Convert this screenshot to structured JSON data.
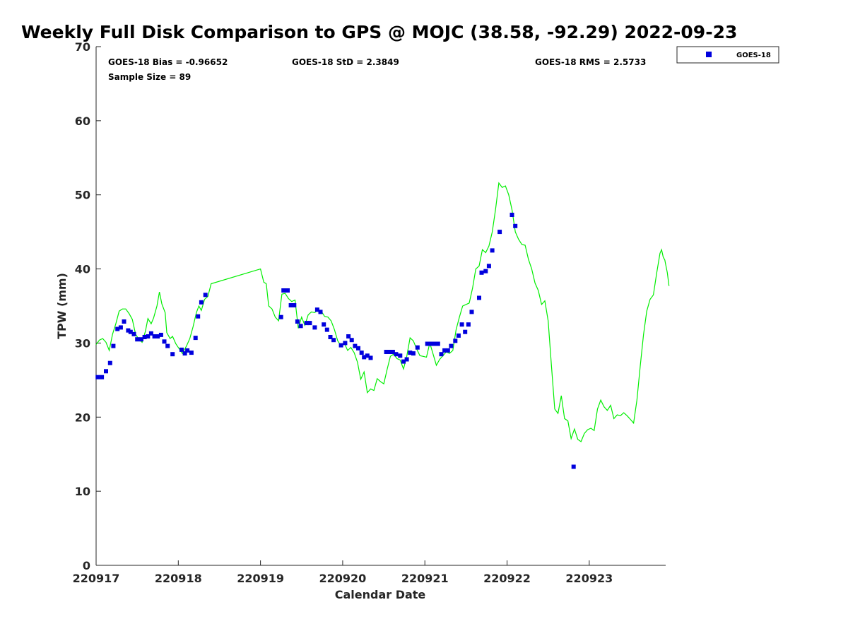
{
  "chart_data": {
    "type": "scatter",
    "title": "Weekly Full Disk Comparison to GPS @ MOJC (38.58, -92.29) 2022-09-23",
    "xlabel": "Calendar Date",
    "ylabel": "TPW (mm)",
    "xlim": [
      0,
      6.93
    ],
    "ylim": [
      0,
      70
    ],
    "x_tick_labels": [
      "220917",
      "220918",
      "220919",
      "220920",
      "220921",
      "220922",
      "220923"
    ],
    "x_tick_values": [
      0,
      1,
      2,
      3,
      4,
      5,
      6
    ],
    "y_tick_values": [
      0,
      10,
      20,
      30,
      40,
      50,
      60,
      70
    ],
    "grid": false,
    "legend_placement": "outside-top-right",
    "stats": {
      "bias": "GOES-18 Bias = -0.96652",
      "std": "GOES-18 StD = 2.3849",
      "rms": "GOES-18 RMS = 2.5733",
      "sample": "Sample Size = 89"
    },
    "series": [
      {
        "name": "GOES-18",
        "kind": "markers",
        "color": "#0000dd",
        "points": [
          [
            0.02,
            25.4
          ],
          [
            0.07,
            25.4
          ],
          [
            0.12,
            26.2
          ],
          [
            0.17,
            27.3
          ],
          [
            0.21,
            29.6
          ],
          [
            0.26,
            31.9
          ],
          [
            0.3,
            32.1
          ],
          [
            0.34,
            32.9
          ],
          [
            0.39,
            31.7
          ],
          [
            0.42,
            31.5
          ],
          [
            0.46,
            31.2
          ],
          [
            0.5,
            30.5
          ],
          [
            0.55,
            30.5
          ],
          [
            0.59,
            30.8
          ],
          [
            0.63,
            30.9
          ],
          [
            0.67,
            31.3
          ],
          [
            0.71,
            30.9
          ],
          [
            0.75,
            30.9
          ],
          [
            0.79,
            31.1
          ],
          [
            0.83,
            30.2
          ],
          [
            0.87,
            29.6
          ],
          [
            0.93,
            28.5
          ],
          [
            1.04,
            29.1
          ],
          [
            1.08,
            28.6
          ],
          [
            1.11,
            29.0
          ],
          [
            1.16,
            28.7
          ],
          [
            1.21,
            30.7
          ],
          [
            1.24,
            33.6
          ],
          [
            1.28,
            35.5
          ],
          [
            1.33,
            36.5
          ],
          [
            2.25,
            33.5
          ],
          [
            2.28,
            37.1
          ],
          [
            2.33,
            37.1
          ],
          [
            2.37,
            35.1
          ],
          [
            2.41,
            35.1
          ],
          [
            2.45,
            32.9
          ],
          [
            2.49,
            32.3
          ],
          [
            2.56,
            32.7
          ],
          [
            2.6,
            32.7
          ],
          [
            2.66,
            32.1
          ],
          [
            2.69,
            34.5
          ],
          [
            2.73,
            34.2
          ],
          [
            2.77,
            32.5
          ],
          [
            2.81,
            31.8
          ],
          [
            2.85,
            30.8
          ],
          [
            2.89,
            30.4
          ],
          [
            2.98,
            29.7
          ],
          [
            3.03,
            30.0
          ],
          [
            3.07,
            30.9
          ],
          [
            3.11,
            30.4
          ],
          [
            3.15,
            29.6
          ],
          [
            3.19,
            29.3
          ],
          [
            3.23,
            28.7
          ],
          [
            3.26,
            28.1
          ],
          [
            3.3,
            28.3
          ],
          [
            3.34,
            28.0
          ],
          [
            3.53,
            28.8
          ],
          [
            3.57,
            28.8
          ],
          [
            3.61,
            28.8
          ],
          [
            3.65,
            28.5
          ],
          [
            3.7,
            28.3
          ],
          [
            3.74,
            27.5
          ],
          [
            3.78,
            27.8
          ],
          [
            3.82,
            28.7
          ],
          [
            3.86,
            28.6
          ],
          [
            3.91,
            29.4
          ],
          [
            4.03,
            29.9
          ],
          [
            4.08,
            29.9
          ],
          [
            4.12,
            29.9
          ],
          [
            4.16,
            29.9
          ],
          [
            4.2,
            28.5
          ],
          [
            4.24,
            29.0
          ],
          [
            4.28,
            29.0
          ],
          [
            4.32,
            29.6
          ],
          [
            4.37,
            30.3
          ],
          [
            4.41,
            31.0
          ],
          [
            4.45,
            32.5
          ],
          [
            4.49,
            31.5
          ],
          [
            4.53,
            32.5
          ],
          [
            4.57,
            34.2
          ],
          [
            4.66,
            36.1
          ],
          [
            4.69,
            39.5
          ],
          [
            4.74,
            39.7
          ],
          [
            4.78,
            40.4
          ],
          [
            4.82,
            42.5
          ],
          [
            4.91,
            45.0
          ],
          [
            5.06,
            47.3
          ],
          [
            5.1,
            45.8
          ],
          [
            5.81,
            13.3
          ]
        ]
      },
      {
        "name": "",
        "kind": "line",
        "color": "#00ee00",
        "points": [
          [
            0.0,
            29.8
          ],
          [
            0.04,
            30.4
          ],
          [
            0.08,
            30.6
          ],
          [
            0.12,
            30.1
          ],
          [
            0.16,
            29.0
          ],
          [
            0.2,
            31.2
          ],
          [
            0.24,
            32.6
          ],
          [
            0.28,
            34.3
          ],
          [
            0.32,
            34.6
          ],
          [
            0.36,
            34.6
          ],
          [
            0.4,
            34.0
          ],
          [
            0.44,
            33.2
          ],
          [
            0.48,
            31.2
          ],
          [
            0.52,
            30.5
          ],
          [
            0.56,
            30.1
          ],
          [
            0.6,
            31.6
          ],
          [
            0.63,
            33.3
          ],
          [
            0.67,
            32.6
          ],
          [
            0.7,
            33.4
          ],
          [
            0.74,
            35.0
          ],
          [
            0.77,
            36.9
          ],
          [
            0.8,
            35.3
          ],
          [
            0.84,
            34.1
          ],
          [
            0.86,
            31.4
          ],
          [
            0.9,
            30.6
          ],
          [
            0.93,
            30.9
          ],
          [
            0.97,
            29.9
          ],
          [
            1.0,
            29.4
          ],
          [
            1.05,
            28.6
          ],
          [
            1.1,
            29.6
          ],
          [
            1.14,
            30.6
          ],
          [
            1.18,
            32.2
          ],
          [
            1.22,
            34.1
          ],
          [
            1.25,
            35.0
          ],
          [
            1.28,
            34.4
          ],
          [
            1.32,
            35.9
          ],
          [
            1.36,
            36.3
          ],
          [
            1.4,
            38.0
          ],
          [
            2.0,
            40.0
          ],
          [
            2.04,
            38.2
          ],
          [
            2.07,
            38.0
          ],
          [
            2.1,
            35.0
          ],
          [
            2.14,
            34.6
          ],
          [
            2.18,
            33.5
          ],
          [
            2.22,
            33.0
          ],
          [
            2.26,
            36.6
          ],
          [
            2.3,
            36.7
          ],
          [
            2.34,
            36.0
          ],
          [
            2.38,
            35.6
          ],
          [
            2.42,
            35.8
          ],
          [
            2.46,
            32.0
          ],
          [
            2.5,
            33.5
          ],
          [
            2.54,
            32.4
          ],
          [
            2.58,
            33.8
          ],
          [
            2.62,
            34.2
          ],
          [
            2.66,
            34.1
          ],
          [
            2.7,
            34.5
          ],
          [
            2.74,
            34.3
          ],
          [
            2.78,
            33.6
          ],
          [
            2.82,
            33.5
          ],
          [
            2.86,
            33.0
          ],
          [
            2.9,
            31.8
          ],
          [
            2.94,
            30.3
          ],
          [
            2.98,
            29.6
          ],
          [
            3.02,
            30.0
          ],
          [
            3.06,
            29.0
          ],
          [
            3.1,
            29.4
          ],
          [
            3.14,
            28.7
          ],
          [
            3.18,
            27.4
          ],
          [
            3.22,
            25.1
          ],
          [
            3.26,
            26.1
          ],
          [
            3.3,
            23.3
          ],
          [
            3.34,
            23.8
          ],
          [
            3.38,
            23.6
          ],
          [
            3.42,
            25.2
          ],
          [
            3.46,
            24.8
          ],
          [
            3.5,
            24.5
          ],
          [
            3.54,
            26.4
          ],
          [
            3.58,
            28.2
          ],
          [
            3.62,
            28.5
          ],
          [
            3.66,
            27.9
          ],
          [
            3.7,
            27.7
          ],
          [
            3.74,
            26.5
          ],
          [
            3.78,
            28.2
          ],
          [
            3.82,
            30.7
          ],
          [
            3.86,
            30.3
          ],
          [
            3.9,
            29.2
          ],
          [
            3.94,
            28.3
          ],
          [
            3.98,
            28.2
          ],
          [
            4.02,
            28.1
          ],
          [
            4.06,
            30.0
          ],
          [
            4.1,
            28.5
          ],
          [
            4.14,
            27.0
          ],
          [
            4.18,
            27.8
          ],
          [
            4.22,
            28.3
          ],
          [
            4.26,
            28.8
          ],
          [
            4.3,
            28.6
          ],
          [
            4.34,
            29.0
          ],
          [
            4.38,
            31.8
          ],
          [
            4.42,
            33.5
          ],
          [
            4.46,
            35.0
          ],
          [
            4.5,
            35.2
          ],
          [
            4.54,
            35.4
          ],
          [
            4.58,
            37.4
          ],
          [
            4.62,
            40.0
          ],
          [
            4.66,
            40.4
          ],
          [
            4.7,
            42.6
          ],
          [
            4.74,
            42.2
          ],
          [
            4.78,
            43.1
          ],
          [
            4.82,
            45.0
          ],
          [
            4.86,
            48.0
          ],
          [
            4.9,
            51.6
          ],
          [
            4.94,
            51.0
          ],
          [
            4.98,
            51.2
          ],
          [
            5.02,
            50.0
          ],
          [
            5.06,
            48.0
          ],
          [
            5.1,
            45.0
          ],
          [
            5.14,
            44.0
          ],
          [
            5.18,
            43.3
          ],
          [
            5.22,
            43.2
          ],
          [
            5.26,
            41.3
          ],
          [
            5.3,
            40.0
          ],
          [
            5.34,
            38.1
          ],
          [
            5.38,
            37.1
          ],
          [
            5.42,
            35.2
          ],
          [
            5.46,
            35.7
          ],
          [
            5.5,
            33.0
          ],
          [
            5.54,
            27.0
          ],
          [
            5.58,
            21.1
          ],
          [
            5.62,
            20.5
          ],
          [
            5.66,
            22.9
          ],
          [
            5.7,
            19.8
          ],
          [
            5.74,
            19.5
          ],
          [
            5.78,
            17.1
          ],
          [
            5.82,
            18.4
          ],
          [
            5.86,
            17.0
          ],
          [
            5.9,
            16.7
          ],
          [
            5.94,
            17.8
          ],
          [
            5.98,
            18.3
          ],
          [
            6.02,
            18.5
          ],
          [
            6.06,
            18.2
          ],
          [
            6.1,
            21.1
          ],
          [
            6.14,
            22.3
          ],
          [
            6.18,
            21.4
          ],
          [
            6.22,
            20.9
          ],
          [
            6.26,
            21.6
          ],
          [
            6.3,
            19.8
          ],
          [
            6.34,
            20.3
          ],
          [
            6.38,
            20.2
          ],
          [
            6.42,
            20.6
          ],
          [
            6.46,
            20.2
          ],
          [
            6.5,
            19.7
          ],
          [
            6.54,
            19.2
          ],
          [
            6.58,
            22.3
          ],
          [
            6.62,
            26.8
          ],
          [
            6.66,
            31.1
          ],
          [
            6.7,
            34.3
          ],
          [
            6.74,
            35.9
          ],
          [
            6.78,
            36.5
          ],
          [
            6.82,
            39.4
          ],
          [
            6.86,
            42.1
          ],
          [
            6.88,
            42.6
          ],
          [
            6.9,
            41.6
          ],
          [
            6.92,
            41.2
          ],
          [
            6.93,
            40.6
          ],
          [
            6.95,
            39.5
          ],
          [
            6.97,
            37.7
          ]
        ]
      }
    ]
  }
}
